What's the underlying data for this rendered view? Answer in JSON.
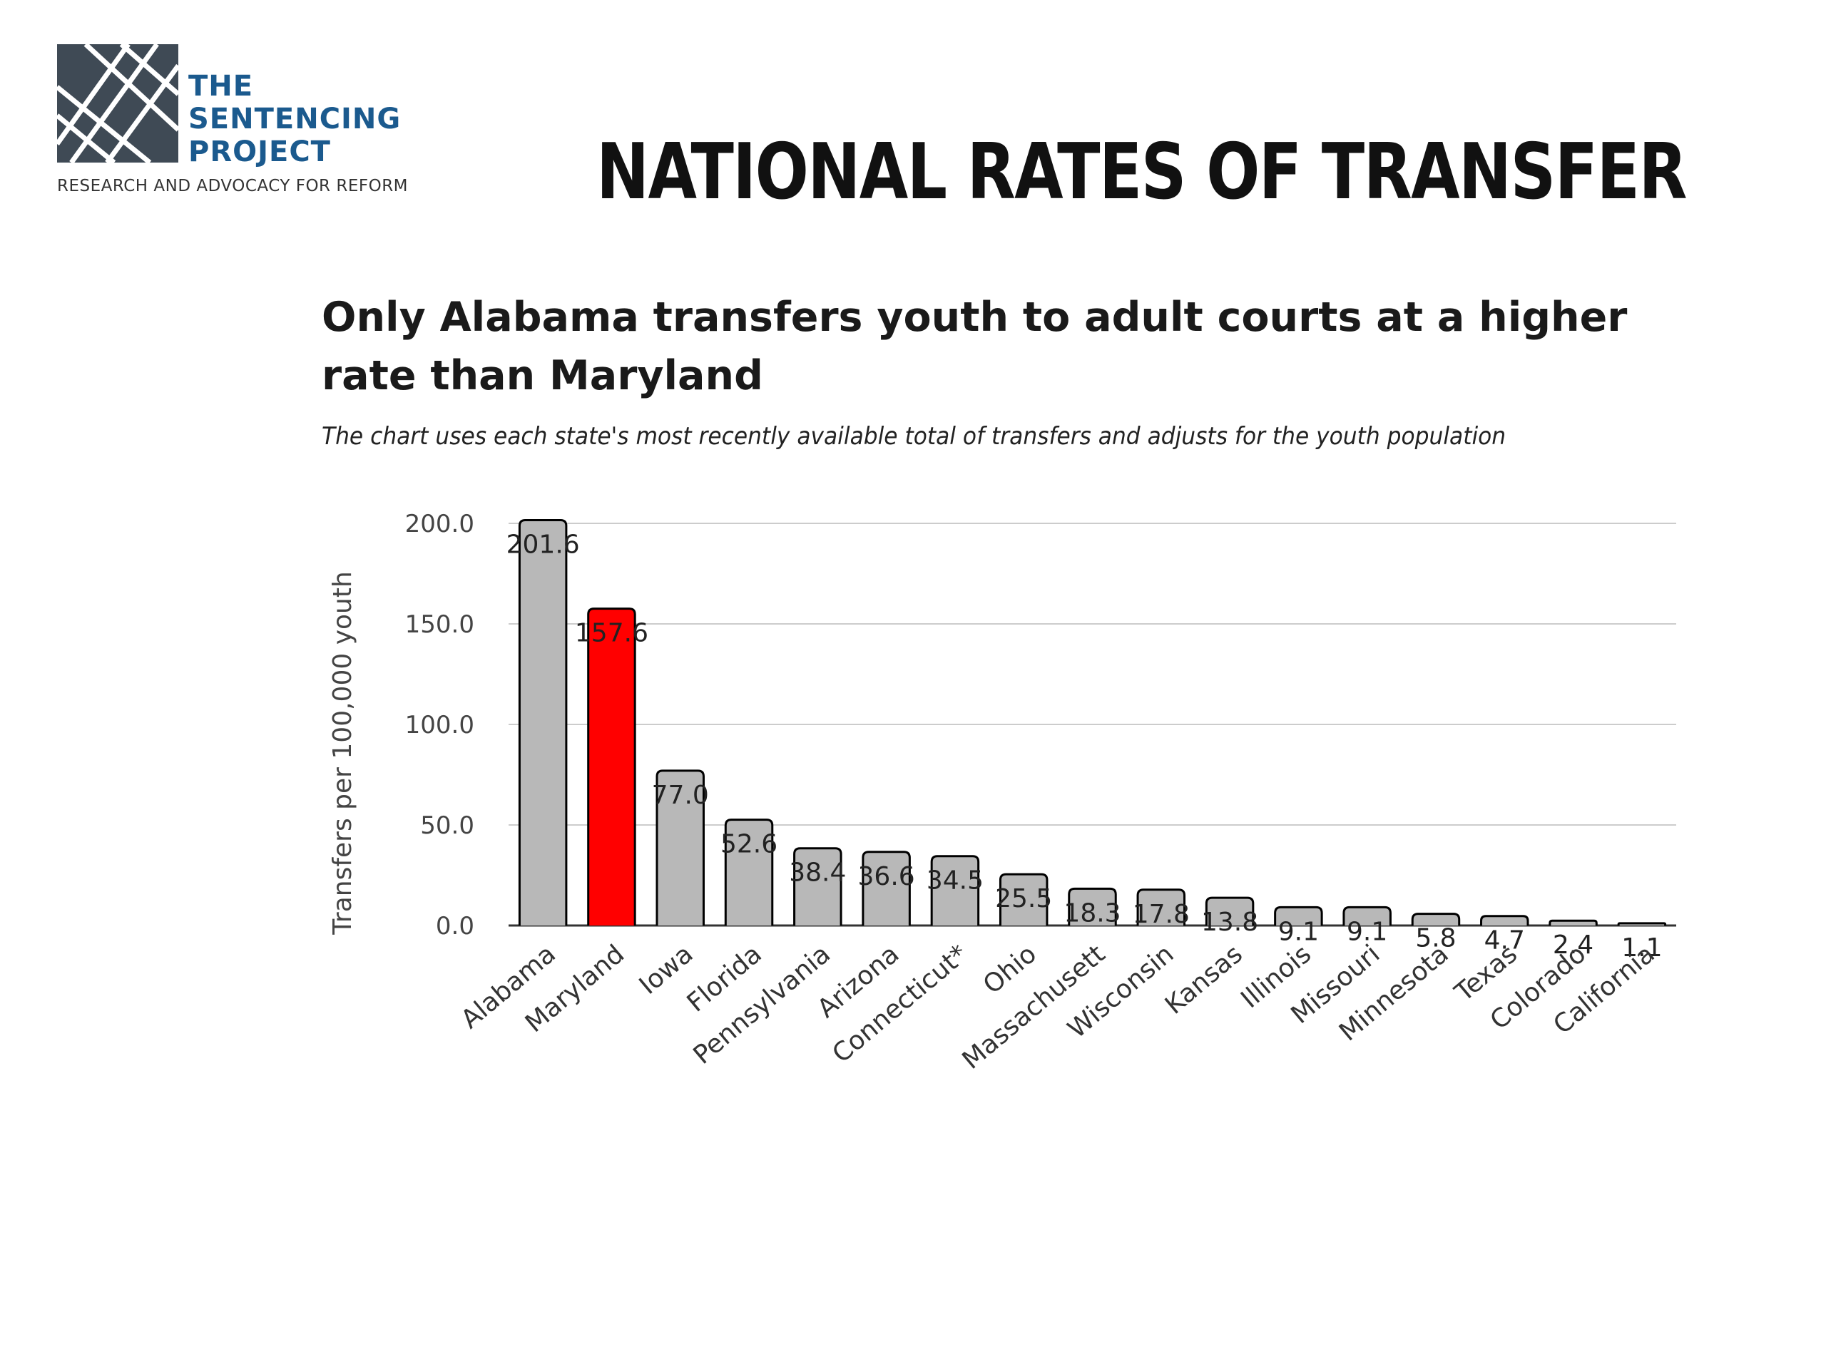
{
  "logo": {
    "lines": [
      "THE",
      "SENTENCING",
      "PROJECT"
    ],
    "tagline": "RESEARCH AND ADVOCACY FOR REFORM",
    "icon": "sentencing-project-logo-mark",
    "color": "#1b5a8e",
    "mark_color": "#3f4a55"
  },
  "slide": {
    "title": "NATIONAL RATES OF TRANSFER"
  },
  "chart_data": {
    "type": "bar",
    "title": "Only Alabama transfers youth to adult courts at a higher rate than Maryland",
    "subtitle": "The chart uses each state's most recently available total of transfers and adjusts for the youth population",
    "xlabel": "",
    "ylabel": "Transfers per 100,000 youth",
    "ylim": [
      0,
      200
    ],
    "yticks": [
      "0.0",
      "50.0",
      "100.0",
      "150.0",
      "200.0"
    ],
    "grid": true,
    "categories": [
      "Alabama",
      "Maryland",
      "Iowa",
      "Florida",
      "Pennsylvania",
      "Arizona",
      "Connecticut*",
      "Ohio",
      "Massachusett",
      "Wisconsin",
      "Kansas",
      "Illinois",
      "Missouri",
      "Minnesota",
      "Texas",
      "Colorado",
      "California"
    ],
    "values": [
      201.6,
      157.6,
      77.0,
      52.6,
      38.4,
      36.6,
      34.5,
      25.5,
      18.3,
      17.8,
      13.8,
      9.1,
      9.1,
      5.8,
      4.7,
      2.4,
      1.1
    ],
    "labels": [
      "201.6",
      "157.6",
      "77.0",
      "52.6",
      "38.4",
      "36.6",
      "34.5",
      "25.5",
      "18.3",
      "17.8",
      "13.8",
      "9.1",
      "9.1",
      "5.8",
      "4.7",
      "2.4",
      "1.1"
    ],
    "highlight": "Maryland",
    "colors": {
      "bar": "#b8b8b8",
      "highlight": "#ff0000",
      "outline": "#000000",
      "highlight_label": "#ff0000",
      "grid": "#cccccc"
    }
  }
}
